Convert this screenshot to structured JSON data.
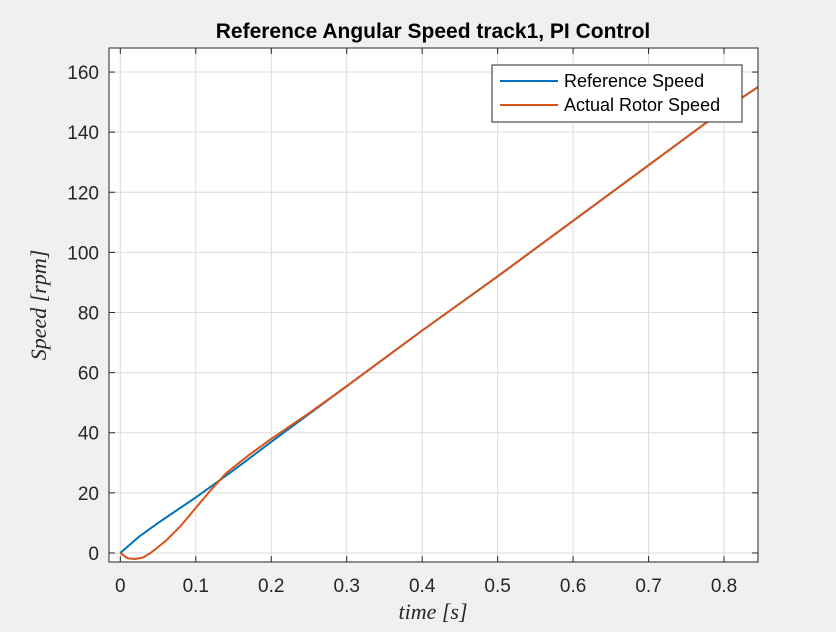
{
  "chart_data": {
    "type": "line",
    "title": "Reference Angular Speed track1, PI Control",
    "xlabel": "time [s]",
    "ylabel": "Speed [rpm]",
    "xlim": [
      -0.015,
      0.845
    ],
    "ylim": [
      -3,
      168
    ],
    "xticks": [
      0,
      0.1,
      0.2,
      0.3,
      0.4,
      0.5,
      0.6,
      0.7,
      0.8
    ],
    "xtick_labels": [
      "0",
      "0.1",
      "0.2",
      "0.3",
      "0.4",
      "0.5",
      "0.6",
      "0.7",
      "0.8"
    ],
    "yticks": [
      0,
      20,
      40,
      60,
      80,
      100,
      120,
      140,
      160
    ],
    "ytick_labels": [
      "0",
      "20",
      "40",
      "60",
      "80",
      "100",
      "120",
      "140",
      "160"
    ],
    "grid": true,
    "legend_position": "top-right",
    "series": [
      {
        "name": "Reference Speed",
        "color": "#0072bd",
        "x": [
          0,
          0.025,
          0.05,
          0.1,
          0.15,
          0.2,
          0.3,
          0.4,
          0.5,
          0.6,
          0.7,
          0.8,
          0.845
        ],
        "y": [
          0,
          5.5,
          10,
          18.5,
          27.5,
          37,
          55.5,
          74,
          92,
          110.5,
          129,
          147.5,
          155
        ]
      },
      {
        "name": "Actual Rotor Speed",
        "color": "#d95319",
        "x": [
          0,
          0.01,
          0.02,
          0.03,
          0.04,
          0.06,
          0.08,
          0.1,
          0.12,
          0.14,
          0.17,
          0.2,
          0.25,
          0.3,
          0.4,
          0.5,
          0.6,
          0.7,
          0.8,
          0.845
        ],
        "y": [
          0,
          -1.8,
          -2,
          -1.5,
          0,
          4,
          9,
          15,
          21,
          26.5,
          32.5,
          38,
          46.5,
          55.5,
          74,
          92,
          110.5,
          129,
          147.5,
          155
        ]
      }
    ]
  }
}
